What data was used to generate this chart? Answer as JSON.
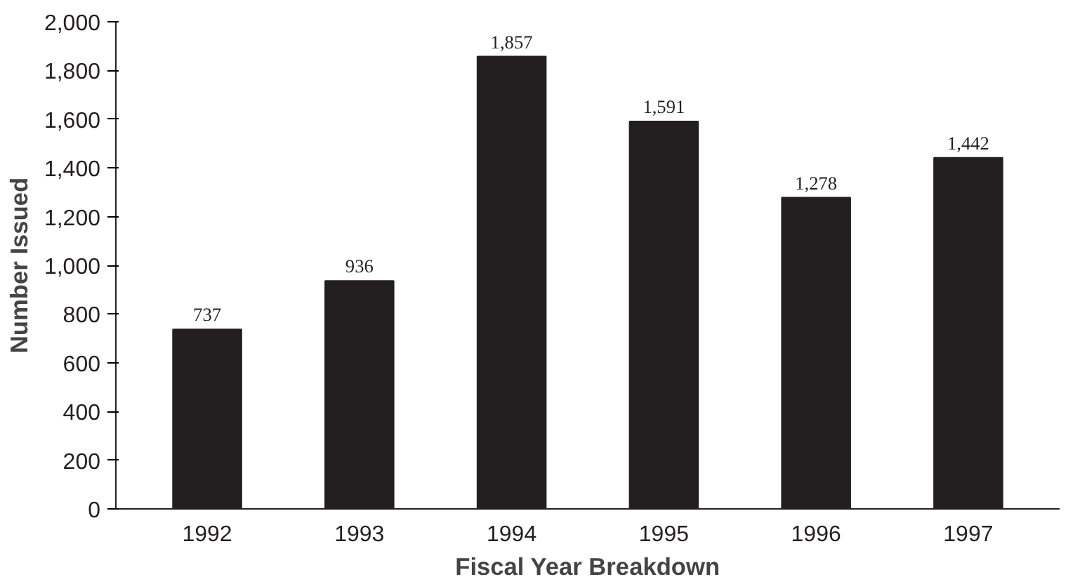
{
  "chart_data": {
    "type": "bar",
    "xlabel": "Fiscal Year Breakdown",
    "ylabel": "Number Issued",
    "categories": [
      "1992",
      "1993",
      "1994",
      "1995",
      "1996",
      "1997"
    ],
    "values": [
      737,
      936,
      1857,
      1591,
      1278,
      1442
    ],
    "value_labels": [
      "737",
      "936",
      "1,857",
      "1,591",
      "1,278",
      "1,442"
    ],
    "color": "#231f20",
    "ylim": [
      0,
      2000
    ],
    "yticks": [
      0,
      200,
      400,
      600,
      800,
      {
        "value": 1000,
        "label": "1,000"
      },
      {
        "value": 1200,
        "label": "1,200"
      },
      {
        "value": 1400,
        "label": "1,400"
      },
      {
        "value": 1600,
        "label": "1,600"
      },
      {
        "value": 1800,
        "label": "1,800"
      },
      {
        "value": 2000,
        "label": "2,000"
      }
    ],
    "grid": false
  }
}
